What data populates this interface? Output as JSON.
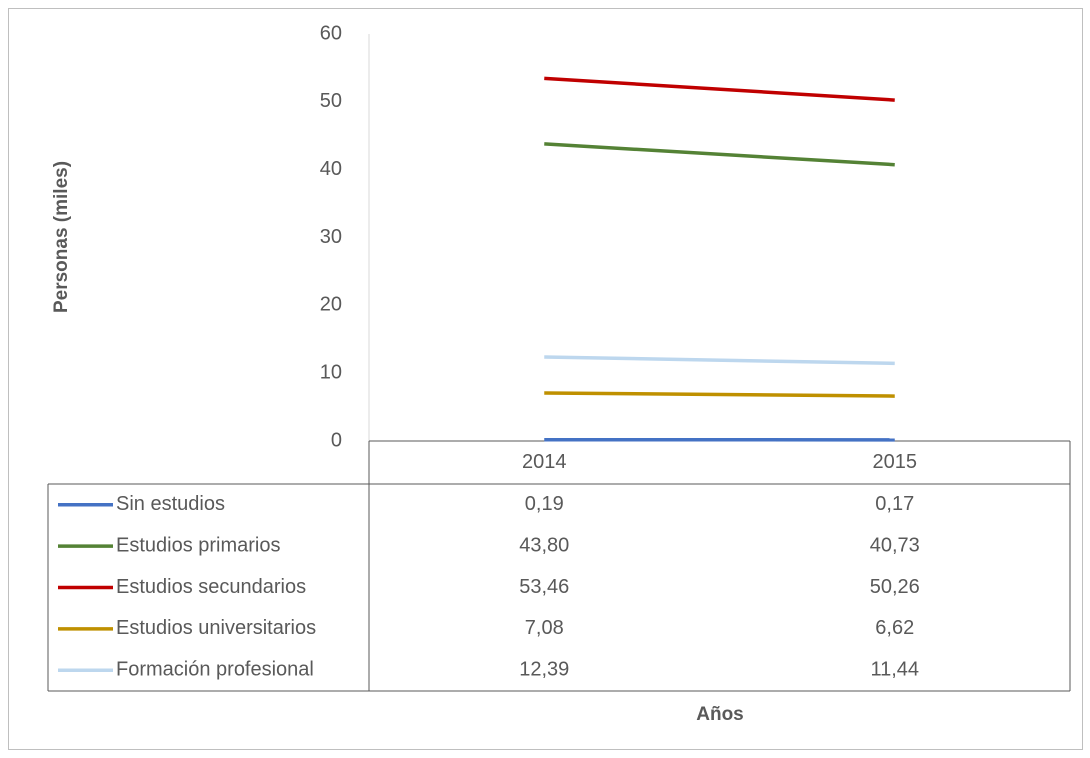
{
  "chart_data": {
    "type": "line",
    "categories": [
      "2014",
      "2015"
    ],
    "series": [
      {
        "name": "Sin estudios",
        "color": "#4472c4",
        "values": [
          0.19,
          0.17
        ],
        "value_labels": [
          "0,19",
          "0,17"
        ]
      },
      {
        "name": "Estudios primarios",
        "color": "#548235",
        "values": [
          43.8,
          40.73
        ],
        "value_labels": [
          "43,80",
          "40,73"
        ]
      },
      {
        "name": "Estudios secundarios",
        "color": "#c00000",
        "values": [
          53.46,
          50.26
        ],
        "value_labels": [
          "53,46",
          "50,26"
        ]
      },
      {
        "name": "Estudios universitarios",
        "color": "#bf9000",
        "values": [
          7.08,
          6.62
        ],
        "value_labels": [
          "7,08",
          "6,62"
        ]
      },
      {
        "name": "Formación profesional",
        "color": "#bdd7ee",
        "values": [
          12.39,
          11.44
        ],
        "value_labels": [
          "12,39",
          "11,44"
        ]
      }
    ],
    "ylim": [
      0,
      60
    ],
    "yticks": [
      0,
      10,
      20,
      30,
      40,
      50,
      60
    ],
    "ylabel": "Personas (miles)",
    "xlabel": "Años"
  }
}
